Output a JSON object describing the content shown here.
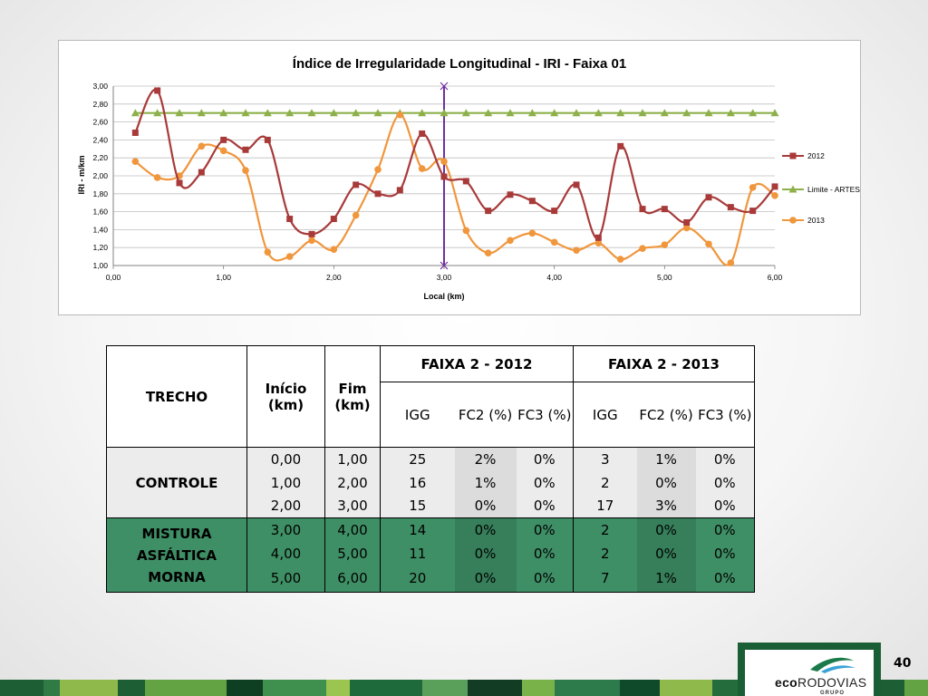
{
  "chart_data": {
    "type": "line",
    "title": "Índice de Irregularidade Longitudinal - IRI - Faixa 01",
    "xlabel": "Local (km)",
    "ylabel": "IRI - m/km",
    "xlim": [
      0,
      6
    ],
    "ylim": [
      1,
      3
    ],
    "x_ticks": [
      "0,00",
      "1,00",
      "2,00",
      "3,00",
      "4,00",
      "5,00",
      "6,00"
    ],
    "y_ticks": [
      "1,00",
      "1,20",
      "1,40",
      "1,60",
      "1,80",
      "2,00",
      "2,20",
      "2,40",
      "2,60",
      "2,80",
      "3,00"
    ],
    "grid": "horizontal",
    "legend_position": "right",
    "x": [
      0.2,
      0.4,
      0.6,
      0.8,
      1.0,
      1.2,
      1.4,
      1.6,
      1.8,
      2.0,
      2.2,
      2.4,
      2.6,
      2.8,
      3.0,
      3.2,
      3.4,
      3.6,
      3.8,
      4.0,
      4.2,
      4.4,
      4.6,
      4.8,
      5.0,
      5.2,
      5.4,
      5.6,
      5.8,
      6.0
    ],
    "series": [
      {
        "name": "2012",
        "color": "#a83a3a",
        "marker": "square",
        "values": [
          2.48,
          2.95,
          1.92,
          2.04,
          2.4,
          2.29,
          2.4,
          1.52,
          1.35,
          1.52,
          1.9,
          1.8,
          1.84,
          2.47,
          1.99,
          1.94,
          1.61,
          1.79,
          1.72,
          1.61,
          1.9,
          1.31,
          2.33,
          1.63,
          1.63,
          1.48,
          1.76,
          1.65,
          1.61,
          1.88
        ]
      },
      {
        "name": "Limite - ARTESP",
        "color": "#8db04a",
        "marker": "triangle",
        "values": [
          2.7,
          2.7,
          2.7,
          2.7,
          2.7,
          2.7,
          2.7,
          2.7,
          2.7,
          2.7,
          2.7,
          2.7,
          2.7,
          2.7,
          2.7,
          2.7,
          2.7,
          2.7,
          2.7,
          2.7,
          2.7,
          2.7,
          2.7,
          2.7,
          2.7,
          2.7,
          2.7,
          2.7,
          2.7,
          2.7
        ]
      },
      {
        "name": "2013",
        "color": "#f0963c",
        "marker": "circle",
        "values": [
          2.16,
          1.98,
          2.0,
          2.33,
          2.28,
          2.06,
          1.15,
          1.1,
          1.28,
          1.18,
          1.56,
          2.07,
          2.68,
          2.08,
          2.16,
          1.39,
          1.14,
          1.28,
          1.36,
          1.26,
          1.17,
          1.25,
          1.07,
          1.19,
          1.23,
          1.42,
          1.24,
          1.03,
          1.87,
          1.78
        ]
      }
    ],
    "vertical_marker": {
      "x": 3.0,
      "color": "#7030a0"
    }
  },
  "table": {
    "header": {
      "trecho": "TRECHO",
      "inicio": "Início (km)",
      "fim": "Fim (km)",
      "group_2012": "FAIXA 2 - 2012",
      "group_2013": "FAIXA 2 - 2013",
      "igg": "IGG",
      "fc2": "FC2 (%)",
      "fc3": "FC3 (%)"
    },
    "groups": [
      {
        "name": "CONTROLE",
        "rows": [
          {
            "inicio": "0,00",
            "fim": "1,00",
            "igg12": "25",
            "fc2_12": "2%",
            "fc3_12": "0%",
            "igg13": "3",
            "fc2_13": "1%",
            "fc3_13": "0%"
          },
          {
            "inicio": "1,00",
            "fim": "2,00",
            "igg12": "16",
            "fc2_12": "1%",
            "fc3_12": "0%",
            "igg13": "2",
            "fc2_13": "0%",
            "fc3_13": "0%"
          },
          {
            "inicio": "2,00",
            "fim": "3,00",
            "igg12": "15",
            "fc2_12": "0%",
            "fc3_12": "0%",
            "igg13": "17",
            "fc2_13": "3%",
            "fc3_13": "0%"
          }
        ]
      },
      {
        "name": "MISTURA ASFÁLTICA MORNA",
        "rows": [
          {
            "inicio": "3,00",
            "fim": "4,00",
            "igg12": "14",
            "fc2_12": "0%",
            "fc3_12": "0%",
            "igg13": "2",
            "fc2_13": "0%",
            "fc3_13": "0%"
          },
          {
            "inicio": "4,00",
            "fim": "5,00",
            "igg12": "11",
            "fc2_12": "0%",
            "fc3_12": "0%",
            "igg13": "2",
            "fc2_13": "0%",
            "fc3_13": "0%"
          },
          {
            "inicio": "5,00",
            "fim": "6,00",
            "igg12": "20",
            "fc2_12": "0%",
            "fc3_12": "0%",
            "igg13": "7",
            "fc2_13": "1%",
            "fc3_13": "0%"
          }
        ]
      }
    ]
  },
  "footer": {
    "page_number": "40",
    "logo_main_bold": "eco",
    "logo_main_rest": "RODOVIAS",
    "logo_sub": "GRUPO",
    "strip_colors": [
      "#1d5e34",
      "#2f7a45",
      "#8fb94a",
      "#1d5e34",
      "#63a343",
      "#0f3f22",
      "#3f8f4f",
      "#9cc54f",
      "#1f6a3a",
      "#5aa05a",
      "#123d24",
      "#7ab24a",
      "#2d7a4a",
      "#0f4a2a",
      "#8fb94a",
      "#256c3c"
    ]
  }
}
